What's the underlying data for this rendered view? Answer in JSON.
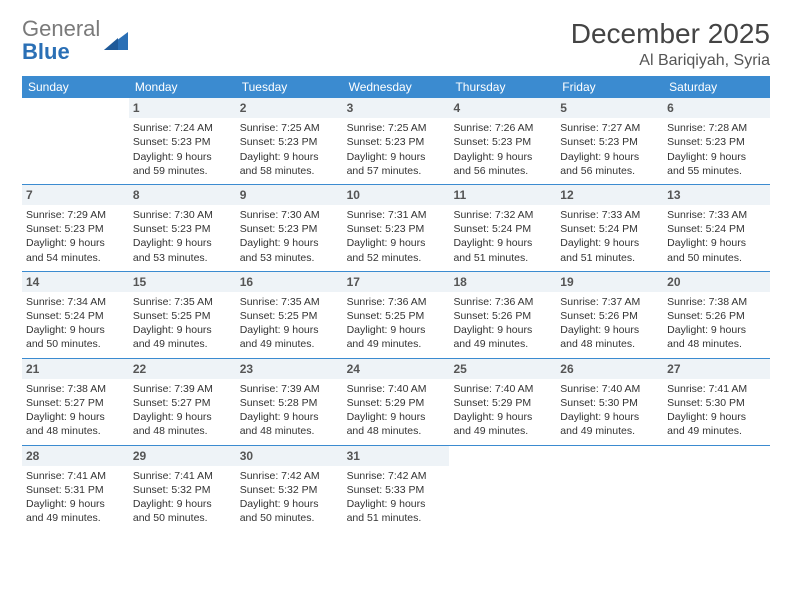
{
  "brand": {
    "part1": "General",
    "part2": "Blue"
  },
  "title": "December 2025",
  "location": "Al Bariqiyah, Syria",
  "colors": {
    "header_bg": "#3b8bd0",
    "header_text": "#ffffff",
    "daynum_bg": "#eef3f7",
    "border": "#3b8bd0",
    "logo_gray": "#7a7a7a",
    "logo_blue": "#2a6fb5"
  },
  "font": {
    "family": "Arial",
    "body_size_pt": 10.5,
    "title_size_pt": 28,
    "location_size_pt": 16,
    "weekday_size_pt": 12,
    "daynum_size_pt": 12
  },
  "weekdays": [
    "Sunday",
    "Monday",
    "Tuesday",
    "Wednesday",
    "Thursday",
    "Friday",
    "Saturday"
  ],
  "weeks": [
    [
      null,
      {
        "n": "1",
        "sr": "Sunrise: 7:24 AM",
        "ss": "Sunset: 5:23 PM",
        "d1": "Daylight: 9 hours",
        "d2": "and 59 minutes."
      },
      {
        "n": "2",
        "sr": "Sunrise: 7:25 AM",
        "ss": "Sunset: 5:23 PM",
        "d1": "Daylight: 9 hours",
        "d2": "and 58 minutes."
      },
      {
        "n": "3",
        "sr": "Sunrise: 7:25 AM",
        "ss": "Sunset: 5:23 PM",
        "d1": "Daylight: 9 hours",
        "d2": "and 57 minutes."
      },
      {
        "n": "4",
        "sr": "Sunrise: 7:26 AM",
        "ss": "Sunset: 5:23 PM",
        "d1": "Daylight: 9 hours",
        "d2": "and 56 minutes."
      },
      {
        "n": "5",
        "sr": "Sunrise: 7:27 AM",
        "ss": "Sunset: 5:23 PM",
        "d1": "Daylight: 9 hours",
        "d2": "and 56 minutes."
      },
      {
        "n": "6",
        "sr": "Sunrise: 7:28 AM",
        "ss": "Sunset: 5:23 PM",
        "d1": "Daylight: 9 hours",
        "d2": "and 55 minutes."
      }
    ],
    [
      {
        "n": "7",
        "sr": "Sunrise: 7:29 AM",
        "ss": "Sunset: 5:23 PM",
        "d1": "Daylight: 9 hours",
        "d2": "and 54 minutes."
      },
      {
        "n": "8",
        "sr": "Sunrise: 7:30 AM",
        "ss": "Sunset: 5:23 PM",
        "d1": "Daylight: 9 hours",
        "d2": "and 53 minutes."
      },
      {
        "n": "9",
        "sr": "Sunrise: 7:30 AM",
        "ss": "Sunset: 5:23 PM",
        "d1": "Daylight: 9 hours",
        "d2": "and 53 minutes."
      },
      {
        "n": "10",
        "sr": "Sunrise: 7:31 AM",
        "ss": "Sunset: 5:23 PM",
        "d1": "Daylight: 9 hours",
        "d2": "and 52 minutes."
      },
      {
        "n": "11",
        "sr": "Sunrise: 7:32 AM",
        "ss": "Sunset: 5:24 PM",
        "d1": "Daylight: 9 hours",
        "d2": "and 51 minutes."
      },
      {
        "n": "12",
        "sr": "Sunrise: 7:33 AM",
        "ss": "Sunset: 5:24 PM",
        "d1": "Daylight: 9 hours",
        "d2": "and 51 minutes."
      },
      {
        "n": "13",
        "sr": "Sunrise: 7:33 AM",
        "ss": "Sunset: 5:24 PM",
        "d1": "Daylight: 9 hours",
        "d2": "and 50 minutes."
      }
    ],
    [
      {
        "n": "14",
        "sr": "Sunrise: 7:34 AM",
        "ss": "Sunset: 5:24 PM",
        "d1": "Daylight: 9 hours",
        "d2": "and 50 minutes."
      },
      {
        "n": "15",
        "sr": "Sunrise: 7:35 AM",
        "ss": "Sunset: 5:25 PM",
        "d1": "Daylight: 9 hours",
        "d2": "and 49 minutes."
      },
      {
        "n": "16",
        "sr": "Sunrise: 7:35 AM",
        "ss": "Sunset: 5:25 PM",
        "d1": "Daylight: 9 hours",
        "d2": "and 49 minutes."
      },
      {
        "n": "17",
        "sr": "Sunrise: 7:36 AM",
        "ss": "Sunset: 5:25 PM",
        "d1": "Daylight: 9 hours",
        "d2": "and 49 minutes."
      },
      {
        "n": "18",
        "sr": "Sunrise: 7:36 AM",
        "ss": "Sunset: 5:26 PM",
        "d1": "Daylight: 9 hours",
        "d2": "and 49 minutes."
      },
      {
        "n": "19",
        "sr": "Sunrise: 7:37 AM",
        "ss": "Sunset: 5:26 PM",
        "d1": "Daylight: 9 hours",
        "d2": "and 48 minutes."
      },
      {
        "n": "20",
        "sr": "Sunrise: 7:38 AM",
        "ss": "Sunset: 5:26 PM",
        "d1": "Daylight: 9 hours",
        "d2": "and 48 minutes."
      }
    ],
    [
      {
        "n": "21",
        "sr": "Sunrise: 7:38 AM",
        "ss": "Sunset: 5:27 PM",
        "d1": "Daylight: 9 hours",
        "d2": "and 48 minutes."
      },
      {
        "n": "22",
        "sr": "Sunrise: 7:39 AM",
        "ss": "Sunset: 5:27 PM",
        "d1": "Daylight: 9 hours",
        "d2": "and 48 minutes."
      },
      {
        "n": "23",
        "sr": "Sunrise: 7:39 AM",
        "ss": "Sunset: 5:28 PM",
        "d1": "Daylight: 9 hours",
        "d2": "and 48 minutes."
      },
      {
        "n": "24",
        "sr": "Sunrise: 7:40 AM",
        "ss": "Sunset: 5:29 PM",
        "d1": "Daylight: 9 hours",
        "d2": "and 48 minutes."
      },
      {
        "n": "25",
        "sr": "Sunrise: 7:40 AM",
        "ss": "Sunset: 5:29 PM",
        "d1": "Daylight: 9 hours",
        "d2": "and 49 minutes."
      },
      {
        "n": "26",
        "sr": "Sunrise: 7:40 AM",
        "ss": "Sunset: 5:30 PM",
        "d1": "Daylight: 9 hours",
        "d2": "and 49 minutes."
      },
      {
        "n": "27",
        "sr": "Sunrise: 7:41 AM",
        "ss": "Sunset: 5:30 PM",
        "d1": "Daylight: 9 hours",
        "d2": "and 49 minutes."
      }
    ],
    [
      {
        "n": "28",
        "sr": "Sunrise: 7:41 AM",
        "ss": "Sunset: 5:31 PM",
        "d1": "Daylight: 9 hours",
        "d2": "and 49 minutes."
      },
      {
        "n": "29",
        "sr": "Sunrise: 7:41 AM",
        "ss": "Sunset: 5:32 PM",
        "d1": "Daylight: 9 hours",
        "d2": "and 50 minutes."
      },
      {
        "n": "30",
        "sr": "Sunrise: 7:42 AM",
        "ss": "Sunset: 5:32 PM",
        "d1": "Daylight: 9 hours",
        "d2": "and 50 minutes."
      },
      {
        "n": "31",
        "sr": "Sunrise: 7:42 AM",
        "ss": "Sunset: 5:33 PM",
        "d1": "Daylight: 9 hours",
        "d2": "and 51 minutes."
      },
      null,
      null,
      null
    ]
  ]
}
